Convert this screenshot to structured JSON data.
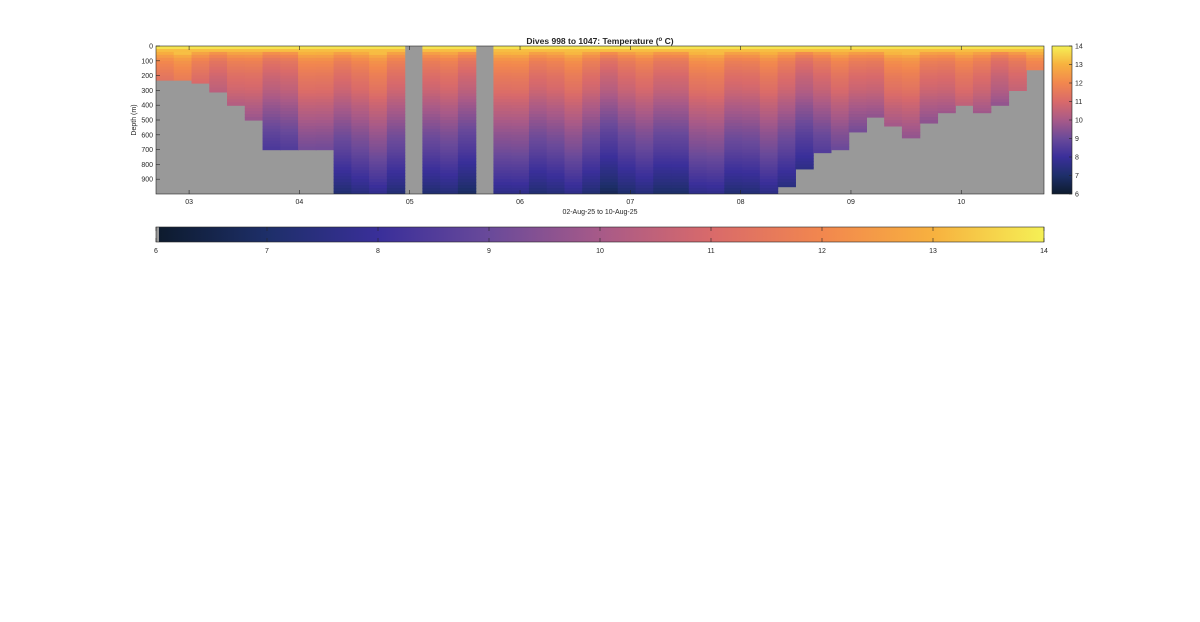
{
  "chart_data": {
    "type": "heatmap",
    "title": "Dives 998 to 1047: Temperature (",
    "title_superscript": "o",
    "title_suffix": " C)",
    "xlabel": "02-Aug-25 to 10-Aug-25",
    "ylabel": "Depth (m)",
    "x_axis": {
      "unit": "day of Aug-2025",
      "range": [
        2.7,
        10.75
      ],
      "ticks": [
        3,
        4,
        5,
        6,
        7,
        8,
        9,
        10
      ],
      "tick_labels": [
        "03",
        "04",
        "05",
        "06",
        "07",
        "08",
        "09",
        "10"
      ]
    },
    "y_axis": {
      "unit": "m",
      "range": [
        0,
        1000
      ],
      "reversed": true,
      "ticks": [
        0,
        100,
        200,
        300,
        400,
        500,
        600,
        700,
        800,
        900
      ],
      "tick_labels": [
        "0",
        "100",
        "200",
        "300",
        "400",
        "500",
        "600",
        "700",
        "800",
        "900"
      ]
    },
    "colorbar": {
      "range": [
        6,
        14
      ],
      "ticks": [
        6,
        7,
        8,
        9,
        10,
        11,
        12,
        13,
        14
      ],
      "tick_labels": [
        "6",
        "7",
        "8",
        "9",
        "10",
        "11",
        "12",
        "13",
        "14"
      ],
      "stops": [
        "#0d1b2e",
        "#1e2f6a",
        "#3a2f9a",
        "#6a4a9a",
        "#a85a88",
        "#d96a6a",
        "#f2874e",
        "#f7b13f",
        "#f5f055"
      ]
    },
    "missing_color": "#999999",
    "profile_bottoms": {
      "x": [
        2.7,
        2.95,
        3.2,
        3.4,
        3.55,
        3.7,
        4.3,
        5.0,
        5.6,
        8.1,
        8.3,
        8.5,
        8.65,
        8.8,
        9.0,
        9.2,
        9.35,
        9.5,
        9.65,
        9.8,
        9.95,
        10.1,
        10.3,
        10.45,
        10.6,
        10.75
      ],
      "depth": [
        230,
        250,
        310,
        400,
        500,
        700,
        1000,
        1000,
        1000,
        1000,
        950,
        830,
        720,
        700,
        580,
        480,
        540,
        620,
        520,
        450,
        400,
        450,
        400,
        300,
        160,
        140
      ]
    },
    "data_gaps": [
      {
        "x_start": 4.95,
        "x_end": 5.1
      },
      {
        "x_start": 5.59,
        "x_end": 5.75
      }
    ],
    "temperature_profile": {
      "depth": [
        0,
        10,
        30,
        60,
        100,
        200,
        300,
        400,
        500,
        600,
        700,
        800,
        900,
        1000
      ],
      "temperature": [
        14,
        13.8,
        13.2,
        12.4,
        11.8,
        11.2,
        10.8,
        10.2,
        9.7,
        9.2,
        8.8,
        8.3,
        7.8,
        7.2
      ]
    }
  }
}
